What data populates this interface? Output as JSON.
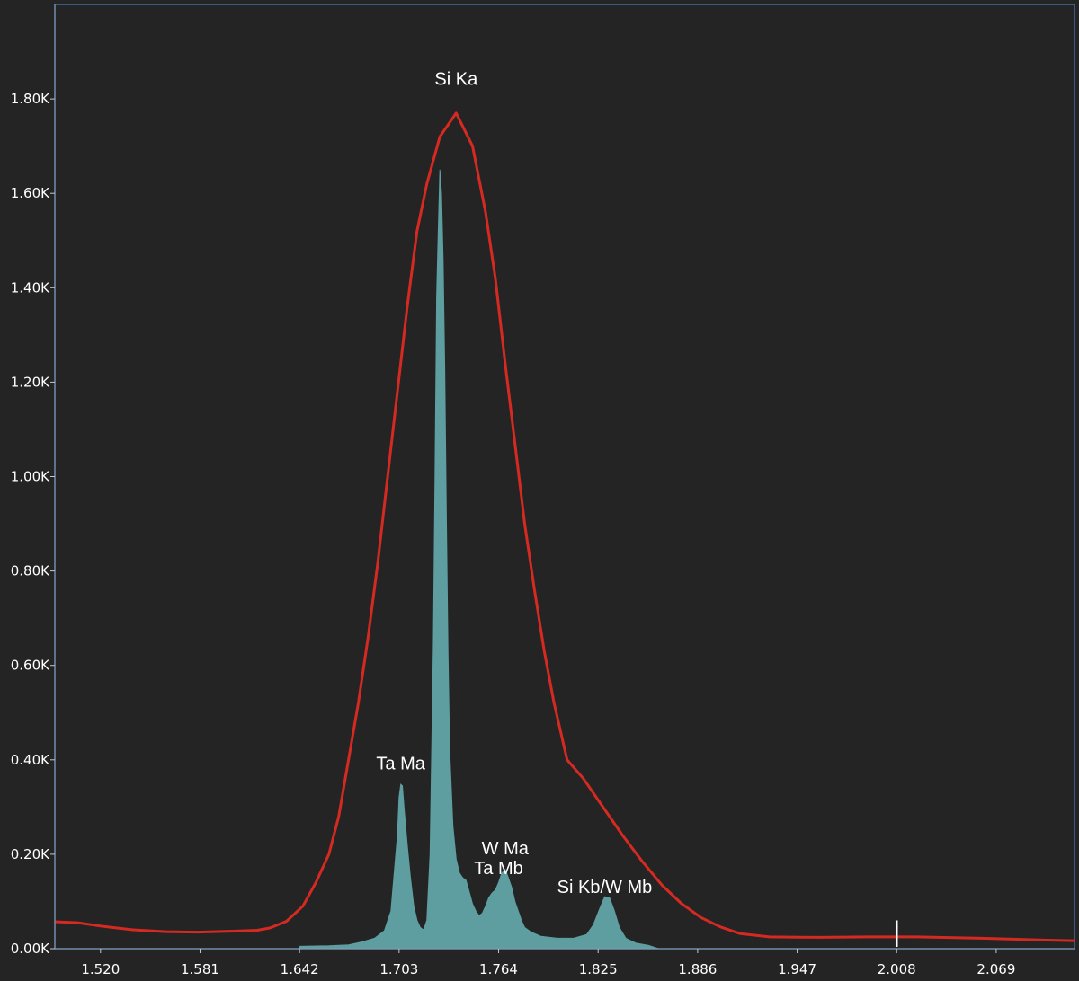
{
  "chart_data": {
    "type": "area",
    "title": "",
    "xlabel": "",
    "ylabel": "",
    "xlim": [
      1.492,
      2.117
    ],
    "ylim": [
      0,
      2000
    ],
    "grid": false,
    "x_ticks": [
      {
        "value": 1.52,
        "label": "1.520"
      },
      {
        "value": 1.581,
        "label": "1.581"
      },
      {
        "value": 1.642,
        "label": "1.642"
      },
      {
        "value": 1.703,
        "label": "1.703"
      },
      {
        "value": 1.764,
        "label": "1.764"
      },
      {
        "value": 1.825,
        "label": "1.825"
      },
      {
        "value": 1.886,
        "label": "1.886"
      },
      {
        "value": 1.947,
        "label": "1.947"
      },
      {
        "value": 2.008,
        "label": "2.008"
      },
      {
        "value": 2.069,
        "label": "2.069"
      }
    ],
    "y_ticks": [
      {
        "value": 0,
        "label": "0.00K"
      },
      {
        "value": 200,
        "label": "0.20K"
      },
      {
        "value": 400,
        "label": "0.40K"
      },
      {
        "value": 600,
        "label": "0.60K"
      },
      {
        "value": 800,
        "label": "0.80K"
      },
      {
        "value": 1000,
        "label": "1.00K"
      },
      {
        "value": 1200,
        "label": "1.20K"
      },
      {
        "value": 1400,
        "label": "1.40K"
      },
      {
        "value": 1600,
        "label": "1.60K"
      },
      {
        "value": 1800,
        "label": "1.80K"
      }
    ],
    "series": [
      {
        "style": "line",
        "color": "#d42a22",
        "points": [
          [
            1.492,
            57
          ],
          [
            1.506,
            55
          ],
          [
            1.522,
            47
          ],
          [
            1.54,
            40
          ],
          [
            1.56,
            36
          ],
          [
            1.58,
            35
          ],
          [
            1.6,
            37
          ],
          [
            1.616,
            39
          ],
          [
            1.624,
            44
          ],
          [
            1.634,
            58
          ],
          [
            1.644,
            90
          ],
          [
            1.652,
            140
          ],
          [
            1.66,
            200
          ],
          [
            1.666,
            280
          ],
          [
            1.672,
            400
          ],
          [
            1.678,
            520
          ],
          [
            1.684,
            660
          ],
          [
            1.69,
            820
          ],
          [
            1.696,
            1000
          ],
          [
            1.702,
            1180
          ],
          [
            1.708,
            1360
          ],
          [
            1.714,
            1520
          ],
          [
            1.72,
            1620
          ],
          [
            1.728,
            1720
          ],
          [
            1.738,
            1770
          ],
          [
            1.748,
            1700
          ],
          [
            1.756,
            1560
          ],
          [
            1.762,
            1420
          ],
          [
            1.768,
            1240
          ],
          [
            1.774,
            1070
          ],
          [
            1.78,
            900
          ],
          [
            1.786,
            760
          ],
          [
            1.792,
            630
          ],
          [
            1.798,
            520
          ],
          [
            1.806,
            400
          ],
          [
            1.816,
            360
          ],
          [
            1.828,
            300
          ],
          [
            1.84,
            240
          ],
          [
            1.852,
            185
          ],
          [
            1.864,
            135
          ],
          [
            1.876,
            96
          ],
          [
            1.888,
            66
          ],
          [
            1.9,
            46
          ],
          [
            1.912,
            32
          ],
          [
            1.93,
            25
          ],
          [
            1.96,
            24
          ],
          [
            1.99,
            25
          ],
          [
            2.02,
            25
          ],
          [
            2.06,
            22
          ],
          [
            2.1,
            18
          ],
          [
            2.117,
            17
          ]
        ]
      },
      {
        "style": "histogram",
        "color": "#5e9ea0",
        "points": [
          [
            1.642,
            5
          ],
          [
            1.66,
            6
          ],
          [
            1.672,
            8
          ],
          [
            1.68,
            14
          ],
          [
            1.688,
            22
          ],
          [
            1.694,
            38
          ],
          [
            1.698,
            80
          ],
          [
            1.7,
            160
          ],
          [
            1.702,
            240
          ],
          [
            1.703,
            320
          ],
          [
            1.704,
            348
          ],
          [
            1.705,
            345
          ],
          [
            1.706,
            300
          ],
          [
            1.707,
            260
          ],
          [
            1.708,
            220
          ],
          [
            1.71,
            150
          ],
          [
            1.712,
            90
          ],
          [
            1.714,
            60
          ],
          [
            1.716,
            45
          ],
          [
            1.718,
            40
          ],
          [
            1.72,
            60
          ],
          [
            1.722,
            200
          ],
          [
            1.724,
            640
          ],
          [
            1.725,
            1000
          ],
          [
            1.726,
            1380
          ],
          [
            1.727,
            1520
          ],
          [
            1.728,
            1650
          ],
          [
            1.729,
            1600
          ],
          [
            1.73,
            1460
          ],
          [
            1.731,
            1230
          ],
          [
            1.732,
            900
          ],
          [
            1.733,
            620
          ],
          [
            1.734,
            420
          ],
          [
            1.736,
            260
          ],
          [
            1.738,
            190
          ],
          [
            1.74,
            160
          ],
          [
            1.742,
            150
          ],
          [
            1.744,
            145
          ],
          [
            1.746,
            120
          ],
          [
            1.748,
            95
          ],
          [
            1.75,
            80
          ],
          [
            1.752,
            70
          ],
          [
            1.754,
            75
          ],
          [
            1.756,
            90
          ],
          [
            1.758,
            108
          ],
          [
            1.76,
            118
          ],
          [
            1.762,
            124
          ],
          [
            1.764,
            140
          ],
          [
            1.766,
            160
          ],
          [
            1.768,
            168
          ],
          [
            1.77,
            150
          ],
          [
            1.772,
            130
          ],
          [
            1.774,
            100
          ],
          [
            1.776,
            80
          ],
          [
            1.778,
            60
          ],
          [
            1.78,
            45
          ],
          [
            1.784,
            35
          ],
          [
            1.79,
            26
          ],
          [
            1.8,
            22
          ],
          [
            1.81,
            22
          ],
          [
            1.818,
            30
          ],
          [
            1.822,
            50
          ],
          [
            1.826,
            85
          ],
          [
            1.829,
            110
          ],
          [
            1.832,
            108
          ],
          [
            1.835,
            80
          ],
          [
            1.838,
            45
          ],
          [
            1.842,
            22
          ],
          [
            1.848,
            12
          ],
          [
            1.856,
            7
          ],
          [
            1.862,
            0
          ]
        ]
      }
    ],
    "annotations": [
      {
        "text": "Si Ka",
        "x": 1.738,
        "y": 1830
      },
      {
        "text": "Ta Ma",
        "x": 1.704,
        "y": 380
      },
      {
        "text": "W Ma",
        "x": 1.768,
        "y": 200
      },
      {
        "text": "Ta Mb",
        "x": 1.764,
        "y": 158
      },
      {
        "text": "Si Kb/W Mb",
        "x": 1.829,
        "y": 118
      }
    ],
    "markers": [
      {
        "x": 2.008,
        "y0": 0,
        "y1": 60,
        "color": "#ffffff"
      }
    ]
  }
}
